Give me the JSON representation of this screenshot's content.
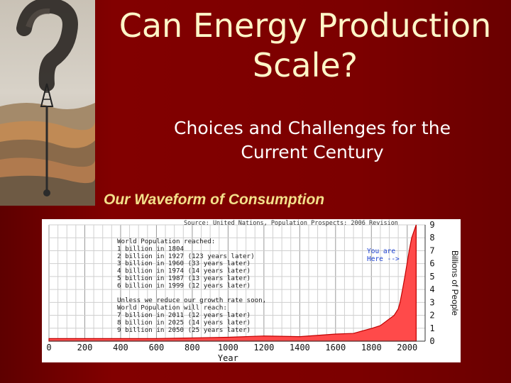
{
  "slide": {
    "title_line1": "Can Energy Production",
    "title_line2": "Scale?",
    "subtitle_line1": "Choices and Challenges for the",
    "subtitle_line2": "Current Century",
    "section_heading": "Our Waveform of Consumption"
  },
  "colors": {
    "background": "#7a0000",
    "title": "#fff6c8",
    "heading": "#f3e08a",
    "curve_fill": "#ff4a4a",
    "callout": "#1a3fd0"
  },
  "icons": [
    "question-mark-smoke-icon",
    "oil-derrick-icon",
    "rock-strata-icon"
  ],
  "chart_data": {
    "type": "area",
    "source_note": "Source: United Nations, Population Prospects: 2006 Revision",
    "xlabel": "Year",
    "ylabel": "Billions of People",
    "x_ticks": [
      "0",
      "200",
      "400",
      "600",
      "800",
      "1000",
      "1200",
      "1400",
      "1600",
      "1800",
      "2000"
    ],
    "y_ticks": [
      "0",
      "1",
      "2",
      "3",
      "4",
      "5",
      "6",
      "7",
      "8",
      "9"
    ],
    "xlim": [
      0,
      2100
    ],
    "ylim": [
      0,
      9
    ],
    "x": [
      0,
      200,
      400,
      600,
      800,
      1000,
      1200,
      1400,
      1600,
      1700,
      1804,
      1850,
      1927,
      1950,
      1960,
      1974,
      1987,
      1999,
      2011,
      2025,
      2050
    ],
    "y": [
      0.2,
      0.2,
      0.2,
      0.2,
      0.25,
      0.3,
      0.4,
      0.35,
      0.55,
      0.6,
      1.0,
      1.2,
      2.0,
      2.5,
      3.0,
      4.0,
      5.0,
      6.0,
      7.0,
      8.0,
      9.0
    ],
    "callout": [
      "You are",
      "Here -->"
    ],
    "annotations": [
      "World Population reached:",
      "1 billion in 1804",
      "2 billion in 1927 (123 years later)",
      "3 billion in 1960 (33 years later)",
      "4 billion in 1974 (14 years later)",
      "5 billion in 1987 (13 years later)",
      "6 billion in 1999 (12 years later)",
      "",
      "Unless we reduce our growth rate soon,",
      "World Population will reach:",
      "7 billion in 2011 (12 years later)",
      "8 billion in 2025 (14 years later)",
      "9 billion in 2050 (25 years later)"
    ]
  }
}
